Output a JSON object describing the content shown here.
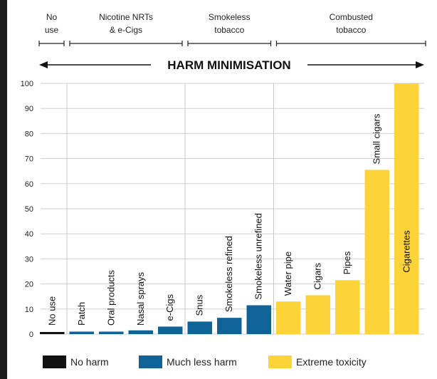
{
  "chart_data": {
    "type": "bar",
    "title": "HARM MINIMISATION",
    "groups": [
      {
        "label_lines": [
          "No",
          "use"
        ],
        "categories": [
          "No use"
        ]
      },
      {
        "label_lines": [
          "Nicotine NRTs",
          "& e-Cigs"
        ],
        "categories": [
          "Patch",
          "Oral products",
          "Nasal sprays",
          "e-Cigs"
        ]
      },
      {
        "label_lines": [
          "Smokeless",
          "tobacco"
        ],
        "categories": [
          "Snus",
          "Smokeless refined",
          "Smokeless unrefined"
        ]
      },
      {
        "label_lines": [
          "Combusted",
          "tobacco"
        ],
        "categories": [
          "Water pipe",
          "Cigars",
          "Pipes",
          "Small cigars",
          "Cigarettes"
        ]
      }
    ],
    "categories": [
      "No use",
      "Patch",
      "Oral products",
      "Nasal sprays",
      "e-Cigs",
      "Snus",
      "Smokeless refined",
      "Smokeless unrefined",
      "Water pipe",
      "Cigars",
      "Pipes",
      "Small cigars",
      "Cigarettes"
    ],
    "values": [
      0,
      1,
      1,
      1.5,
      3,
      5,
      6.5,
      11.5,
      13,
      15.5,
      21.5,
      65.5,
      100
    ],
    "bar_classes": [
      "No harm",
      "Much less harm",
      "Much less harm",
      "Much less harm",
      "Much less harm",
      "Much less harm",
      "Much less harm",
      "Much less harm",
      "Extreme toxicity",
      "Extreme toxicity",
      "Extreme toxicity",
      "Extreme toxicity",
      "Extreme toxicity"
    ],
    "ylim": [
      0,
      100
    ],
    "yticks": [
      0,
      10,
      20,
      30,
      40,
      50,
      60,
      70,
      80,
      90,
      100
    ],
    "legend": [
      {
        "label": "No harm",
        "color": "#111111"
      },
      {
        "label": "Much less harm",
        "color": "#0f6396"
      },
      {
        "label": "Extreme toxicity",
        "color": "#fdd33a"
      }
    ],
    "grid": "vertical group separators",
    "legend_position": "bottom"
  }
}
